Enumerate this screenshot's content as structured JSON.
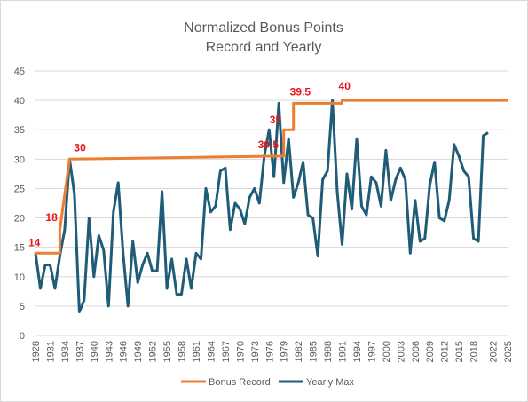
{
  "chart_data": {
    "type": "line",
    "title": "Normalized Bonus Points",
    "subtitle": "Record and Yearly",
    "ylim": [
      0,
      45
    ],
    "yticks": [
      0,
      5,
      10,
      15,
      20,
      25,
      30,
      35,
      40,
      45
    ],
    "xlim": [
      1928,
      2025
    ],
    "xticks": [
      1928,
      1931,
      1934,
      1937,
      1940,
      1943,
      1946,
      1949,
      1952,
      1955,
      1958,
      1961,
      1964,
      1967,
      1970,
      1973,
      1976,
      1979,
      1982,
      1985,
      1988,
      1991,
      1994,
      1997,
      2000,
      2003,
      2006,
      2009,
      2012,
      2015,
      2018,
      2022,
      2025
    ],
    "grid": true,
    "legend_position": "bottom",
    "colors": {
      "record": "#ed7d31",
      "yearly": "#1f5c78",
      "annotation": "#e8141a",
      "grid": "#d9d9d9"
    },
    "series": [
      {
        "name": "Bonus Record",
        "points": [
          [
            1928,
            14
          ],
          [
            1933,
            14
          ],
          [
            1933,
            18
          ],
          [
            1935,
            30
          ],
          [
            1977,
            30.5
          ],
          [
            1979,
            30.5
          ],
          [
            1979,
            35
          ],
          [
            1981,
            35
          ],
          [
            1981,
            39.5
          ],
          [
            1991,
            39.5
          ],
          [
            1991,
            40
          ],
          [
            2025,
            40
          ]
        ]
      },
      {
        "name": "Yearly Max",
        "points": [
          [
            1928,
            14
          ],
          [
            1929,
            8
          ],
          [
            1930,
            12
          ],
          [
            1931,
            12
          ],
          [
            1932,
            8
          ],
          [
            1933,
            13.5
          ],
          [
            1934,
            18
          ],
          [
            1935,
            30
          ],
          [
            1936,
            24
          ],
          [
            1937,
            4
          ],
          [
            1938,
            6
          ],
          [
            1939,
            20
          ],
          [
            1940,
            10
          ],
          [
            1941,
            17
          ],
          [
            1942,
            14.5
          ],
          [
            1943,
            5
          ],
          [
            1944,
            21
          ],
          [
            1945,
            26
          ],
          [
            1946,
            14
          ],
          [
            1947,
            5
          ],
          [
            1948,
            16
          ],
          [
            1949,
            9
          ],
          [
            1950,
            12
          ],
          [
            1951,
            14
          ],
          [
            1952,
            11
          ],
          [
            1953,
            11
          ],
          [
            1954,
            24.5
          ],
          [
            1955,
            8
          ],
          [
            1956,
            13
          ],
          [
            1957,
            7
          ],
          [
            1958,
            7
          ],
          [
            1959,
            13
          ],
          [
            1960,
            8
          ],
          [
            1961,
            14
          ],
          [
            1962,
            13
          ],
          [
            1963,
            25
          ],
          [
            1964,
            21
          ],
          [
            1965,
            22
          ],
          [
            1966,
            28
          ],
          [
            1967,
            28.5
          ],
          [
            1968,
            18
          ],
          [
            1969,
            22.5
          ],
          [
            1970,
            21.5
          ],
          [
            1971,
            19
          ],
          [
            1972,
            23.5
          ],
          [
            1973,
            25
          ],
          [
            1974,
            22.5
          ],
          [
            1975,
            30.5
          ],
          [
            1976,
            35
          ],
          [
            1977,
            27
          ],
          [
            1978,
            39.5
          ],
          [
            1979,
            26
          ],
          [
            1980,
            33.5
          ],
          [
            1981,
            23.5
          ],
          [
            1982,
            26
          ],
          [
            1983,
            29.5
          ],
          [
            1984,
            20.5
          ],
          [
            1985,
            20
          ],
          [
            1986,
            13.5
          ],
          [
            1987,
            26.5
          ],
          [
            1988,
            28
          ],
          [
            1989,
            40
          ],
          [
            1990,
            24.5
          ],
          [
            1991,
            15.5
          ],
          [
            1992,
            27.5
          ],
          [
            1993,
            21.5
          ],
          [
            1994,
            33.5
          ],
          [
            1995,
            22
          ],
          [
            1996,
            20.5
          ],
          [
            1997,
            27
          ],
          [
            1998,
            26
          ],
          [
            1999,
            22
          ],
          [
            2000,
            31.5
          ],
          [
            2001,
            23
          ],
          [
            2002,
            26.5
          ],
          [
            2003,
            28.5
          ],
          [
            2004,
            26.5
          ],
          [
            2005,
            14
          ],
          [
            2006,
            23
          ],
          [
            2007,
            16
          ],
          [
            2008,
            16.5
          ],
          [
            2009,
            25.5
          ],
          [
            2010,
            29.5
          ],
          [
            2011,
            20
          ],
          [
            2012,
            19.5
          ],
          [
            2013,
            23
          ],
          [
            2014,
            32.5
          ],
          [
            2015,
            30.5
          ],
          [
            2016,
            28
          ],
          [
            2017,
            27
          ],
          [
            2018,
            16.5
          ],
          [
            2019,
            16
          ],
          [
            2020,
            34
          ],
          [
            2021,
            34.5
          ]
        ]
      }
    ],
    "annotations": [
      {
        "x": 1928,
        "y": 14,
        "text": "14"
      },
      {
        "x": 1933,
        "y": 18,
        "text": "18"
      },
      {
        "x": 1935,
        "y": 30,
        "text": "30"
      },
      {
        "x": 1977,
        "y": 30.5,
        "text": "30.5"
      },
      {
        "x": 1979,
        "y": 35,
        "text": "35"
      },
      {
        "x": 1981,
        "y": 39.5,
        "text": "39.5"
      },
      {
        "x": 1991,
        "y": 40,
        "text": "40"
      }
    ]
  }
}
